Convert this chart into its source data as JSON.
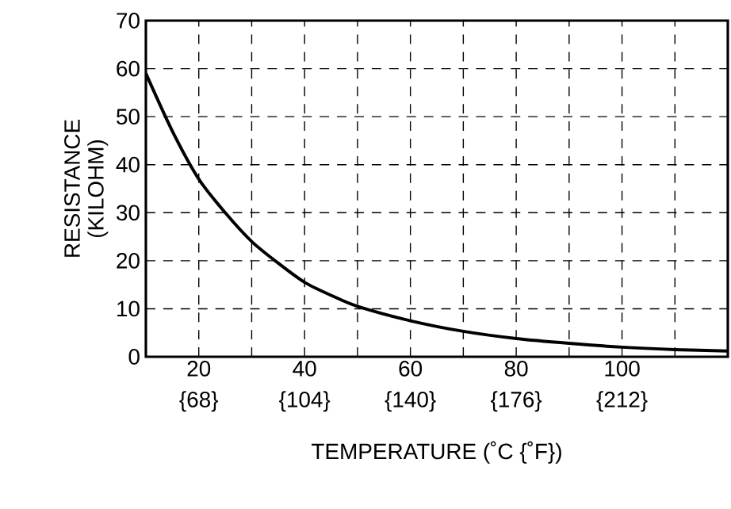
{
  "chart_data": {
    "type": "line",
    "xlabel": "TEMPERATURE (˚C {˚F})",
    "ylabel": "RESISTANCE (KILOHM)",
    "series": [
      {
        "color": "#000000",
        "x": [
          10,
          15,
          20,
          25,
          30,
          35,
          40,
          45,
          50,
          60,
          70,
          80,
          90,
          100,
          110,
          120
        ],
        "values": [
          59,
          47,
          37,
          30,
          24,
          19.5,
          15.5,
          12.8,
          10.5,
          7.5,
          5.3,
          3.8,
          2.8,
          2,
          1.5,
          1.2
        ]
      }
    ],
    "xlim": [
      10,
      120
    ],
    "ylim": [
      0,
      70
    ],
    "xticks": [
      20,
      {
        "value": 30,
        "label": null
      },
      40,
      {
        "value": 50,
        "label": null
      },
      60,
      {
        "value": 70,
        "label": null
      },
      80,
      {
        "value": 90,
        "label": null
      },
      100,
      {
        "value": 110,
        "label": null
      }
    ],
    "x2lim": [
      50,
      248
    ],
    "x2ticks": [
      {
        "value": 68,
        "label": "{68}"
      },
      {
        "value": 104,
        "label": "{104}"
      },
      {
        "value": 140,
        "label": "{140}"
      },
      {
        "value": 176,
        "label": "{176}"
      },
      {
        "value": 212,
        "label": "{212}"
      }
    ],
    "yticks": [
      0,
      10,
      20,
      30,
      40,
      50,
      60,
      70
    ],
    "grid": true,
    "marker": "none",
    "line_style": "solid"
  }
}
